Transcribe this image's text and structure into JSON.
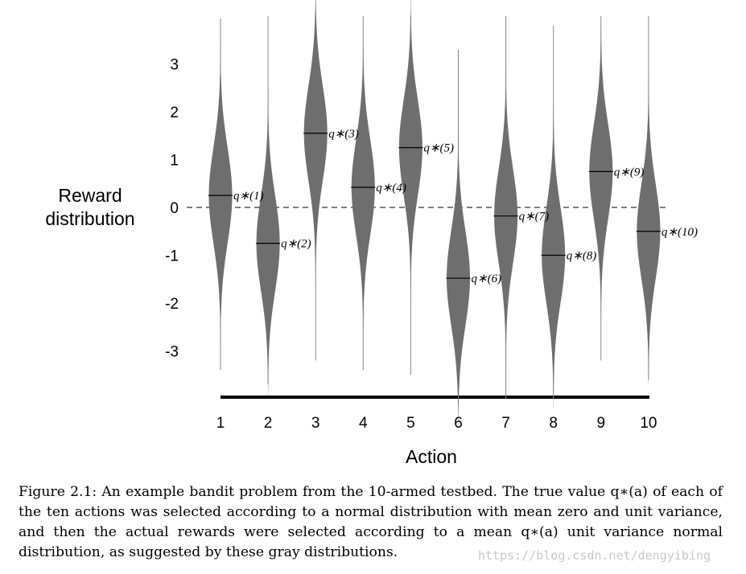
{
  "chart_data": {
    "type": "violin",
    "categories": [
      "1",
      "2",
      "3",
      "4",
      "5",
      "6",
      "7",
      "8",
      "9",
      "10"
    ],
    "means": [
      0.25,
      -0.75,
      1.55,
      0.42,
      1.25,
      -1.48,
      -0.18,
      -1.0,
      0.75,
      -0.5
    ],
    "mean_labels": [
      "q∗(1)",
      "q∗(2)",
      "q∗(3)",
      "q∗(4)",
      "q∗(5)",
      "q∗(6)",
      "q∗(7)",
      "q∗(8)",
      "q∗(9)",
      "q∗(10)"
    ],
    "line_ranges": [
      [
        -3.4,
        3.95
      ],
      [
        -3.7,
        4.0
      ],
      [
        -3.2,
        4.0
      ],
      [
        -3.4,
        4.0
      ],
      [
        -3.5,
        4.0
      ],
      [
        -4.0,
        3.3
      ],
      [
        -4.0,
        4.0
      ],
      [
        -4.0,
        3.8
      ],
      [
        -3.2,
        4.0
      ],
      [
        -3.6,
        4.0
      ]
    ],
    "yticks": [
      3,
      2,
      1,
      0,
      -1,
      -2,
      -3
    ],
    "ytick_labels": [
      "3",
      "2",
      "1",
      "0",
      "-1",
      "-2",
      "-3"
    ],
    "ylim": [
      -4,
      4
    ],
    "ylabel_lines": [
      "Reward",
      "distribution"
    ],
    "xlabel": "Action",
    "zero_line": "dashed",
    "grid": false,
    "legend": "none",
    "violin_color": "#6e6e6e"
  },
  "caption": "Figure 2.1: An example bandit problem from the 10-armed testbed. The true value q∗(a) of each of the ten actions was selected according to a normal distribution with mean zero and unit variance, and then the actual rewards were selected according to a mean q∗(a) unit variance normal distribution, as suggested by these gray distributions.",
  "watermark": "https://blog.csdn.net/dengyibing"
}
